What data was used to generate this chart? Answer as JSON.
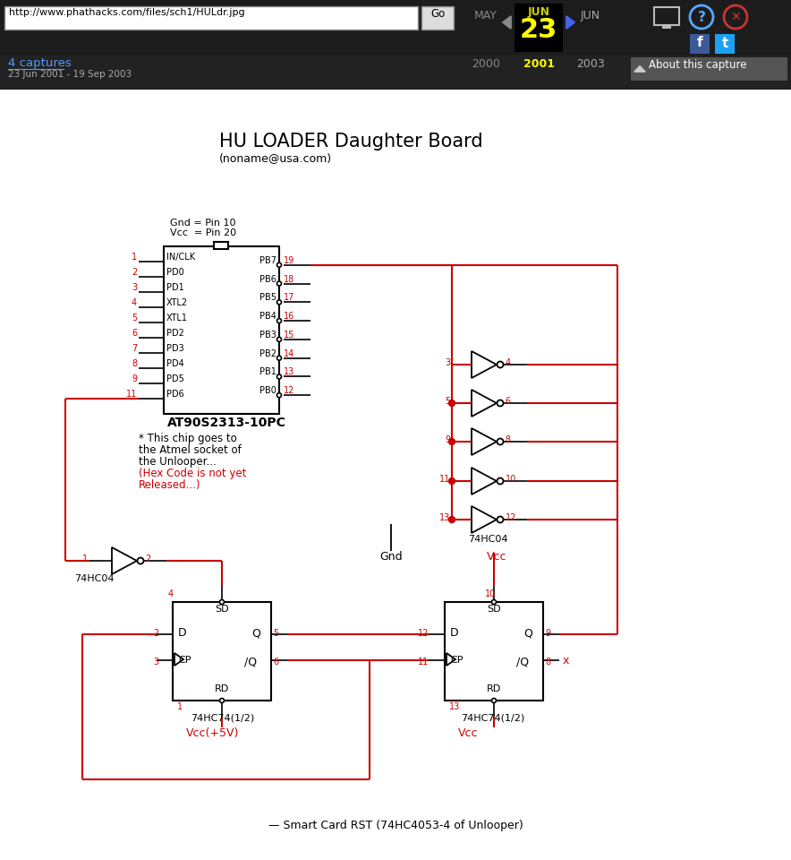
{
  "title": "HU LOADER Daughter Board",
  "subtitle": "(noname@usa.com)",
  "bg_color": "#ffffff",
  "black": "#000000",
  "red": "#cc0000",
  "url_text": "http://www.phathacks.com/files/sch1/HULdr.jpg",
  "captures_text": "4 captures",
  "date_range_text": "23 Jun 2001 - 19 Sep 2003",
  "about_text": "About this capture",
  "chip_left_pins": [
    "IN/CLK",
    "PD0",
    "PD1",
    "XTL2",
    "XTL1",
    "PD2",
    "PD3",
    "PD4",
    "PD5",
    "PD6"
  ],
  "chip_left_nums": [
    "1",
    "2",
    "3",
    "4",
    "5",
    "6",
    "7",
    "8",
    "9",
    "11"
  ],
  "chip_right_pins": [
    "PB7",
    "PB6",
    "PB5",
    "PB4",
    "PB3",
    "PB2",
    "PB1",
    "PB0"
  ],
  "chip_right_nums": [
    "19",
    "18",
    "17",
    "16",
    "15",
    "14",
    "13",
    "12"
  ],
  "gate_info": [
    [
      407,
      "3",
      "4"
    ],
    [
      450,
      "5",
      "6"
    ],
    [
      493,
      "9",
      "8"
    ],
    [
      537,
      "11",
      "10"
    ],
    [
      580,
      "13",
      "12"
    ]
  ],
  "ff1_label": "74HC74(1/2)",
  "ff2_label": "74HC74(1/2)",
  "vcc_label1": "Vcc(+5V)",
  "vcc_label2": "Vcc",
  "bottom_label": "Smart Card RST (74HC4053-4 of Unlooper)"
}
